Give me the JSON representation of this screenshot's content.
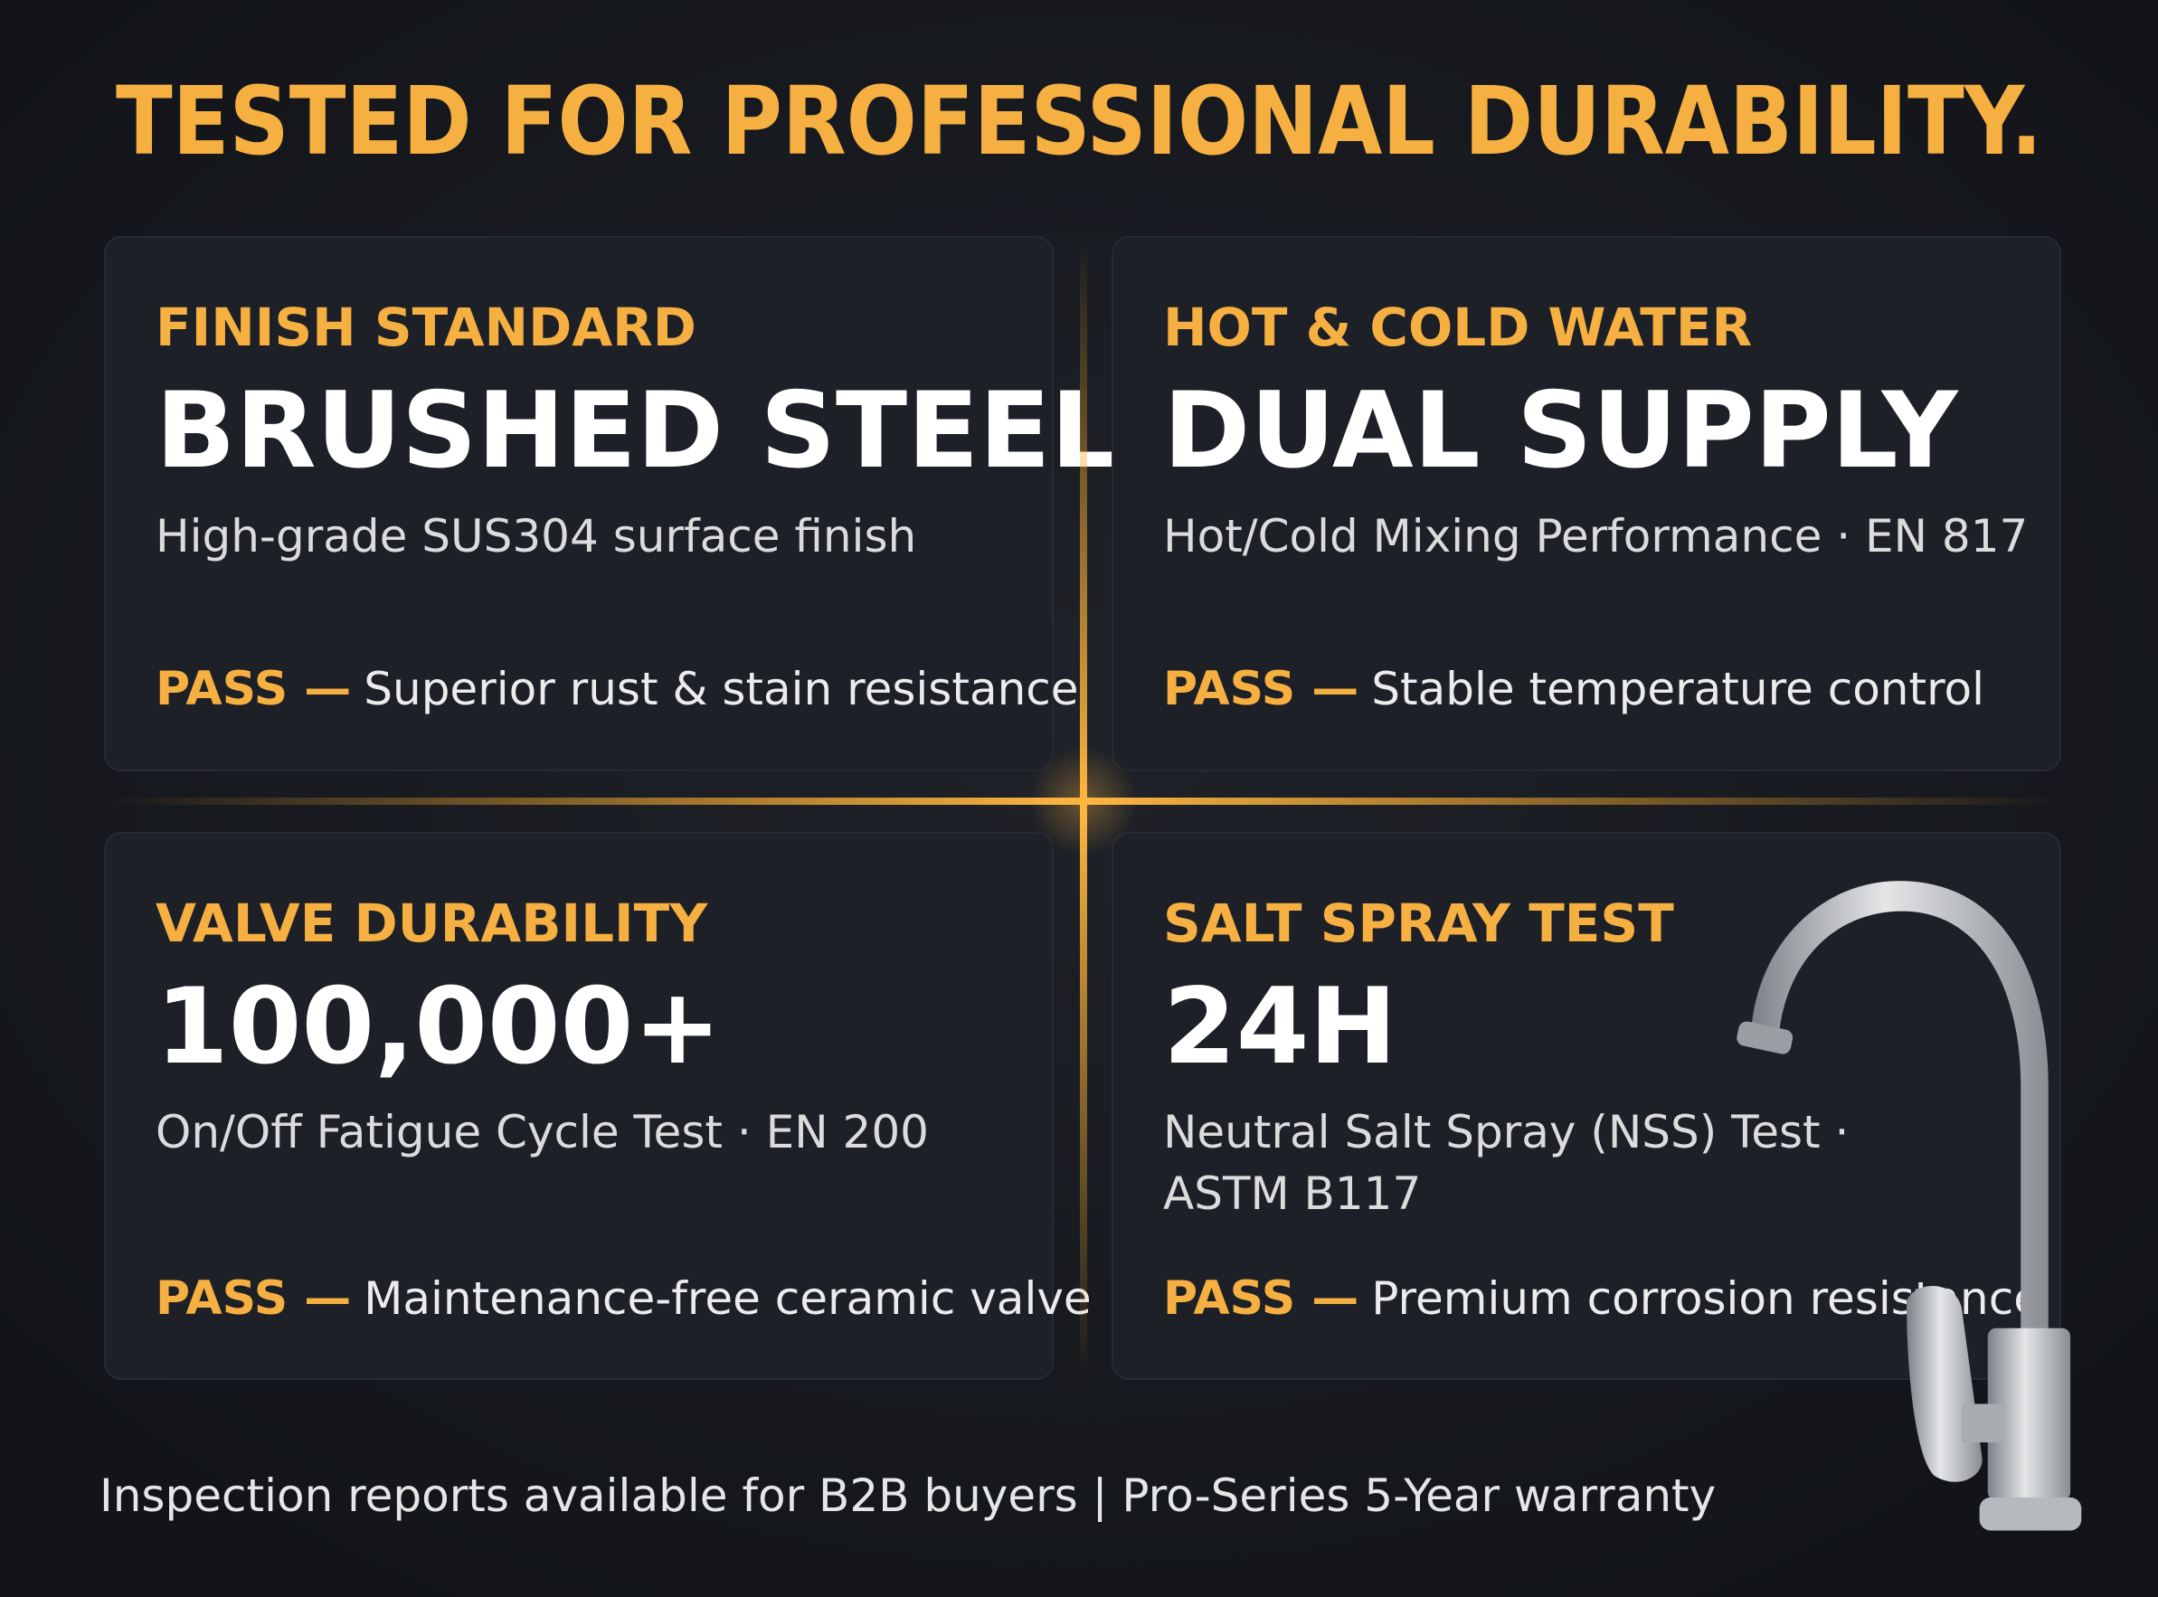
{
  "header": {
    "title": "TESTED FOR PROFESSIONAL DURABILITY."
  },
  "cards": [
    {
      "label": "FINISH STANDARD",
      "headline": "BRUSHED STEEL",
      "description": [
        "High-grade SUS304 surface finish"
      ],
      "status": "PASS —",
      "result": "Superior rust & stain resistance"
    },
    {
      "label": "HOT & COLD WATER",
      "headline": "DUAL SUPPLY",
      "description": [
        "Hot/Cold Mixing Performance · EN 817"
      ],
      "status": "PASS —",
      "result": "Stable temperature control"
    },
    {
      "label": "VALVE DURABILITY",
      "headline": "100,000+",
      "description": [
        "On/Off Fatigue Cycle Test · EN 200"
      ],
      "status": "PASS —",
      "result": "Maintenance-free ceramic valve"
    },
    {
      "label": "SALT SPRAY TEST",
      "headline": "24H",
      "description": [
        "Neutral Salt Spray (NSS) Test ·",
        "ASTM B117"
      ],
      "status": "PASS —",
      "result": "Premium corrosion resistance"
    }
  ],
  "footer": {
    "text": "Inspection reports available for B2B buyers | Pro-Series 5-Year warranty"
  }
}
